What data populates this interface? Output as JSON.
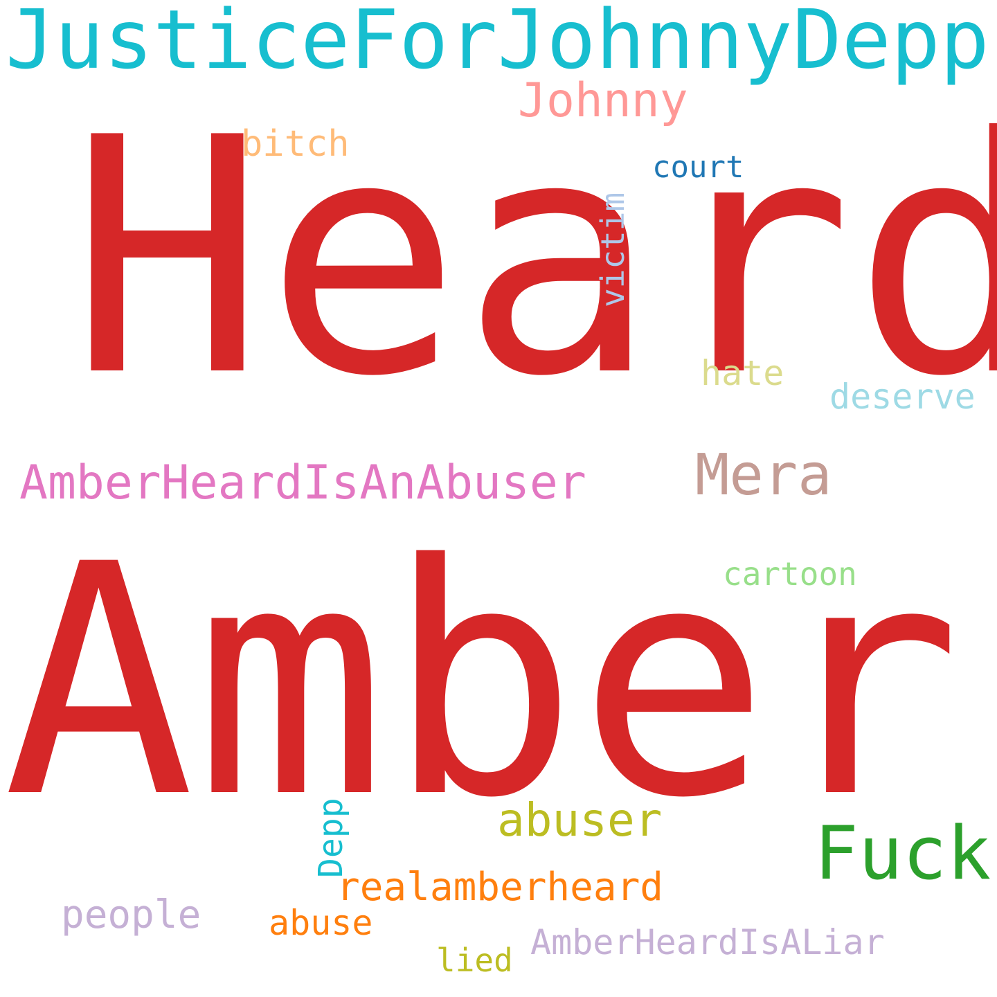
{
  "words": [
    {
      "id": "word-justice-for-johnny-depp",
      "text": "JusticeForJohnnyDepp",
      "color": "#17becf"
    },
    {
      "id": "word-johnny",
      "text": "Johnny",
      "color": "#ff9896"
    },
    {
      "id": "word-heard",
      "text": "Heard",
      "color": "#d62728"
    },
    {
      "id": "word-bitch",
      "text": "bitch",
      "color": "#ffbb78"
    },
    {
      "id": "word-court",
      "text": "court",
      "color": "#1f77b4"
    },
    {
      "id": "word-victim",
      "text": "victim",
      "color": "#aec7e8"
    },
    {
      "id": "word-hate",
      "text": "hate",
      "color": "#dbdb8d"
    },
    {
      "id": "word-deserve",
      "text": "deserve",
      "color": "#9edae5"
    },
    {
      "id": "word-amber-heard-is-an-abuser",
      "text": "AmberHeardIsAnAbuser",
      "color": "#e377c2"
    },
    {
      "id": "word-mera",
      "text": "Mera",
      "color": "#c49c94"
    },
    {
      "id": "word-cartoon",
      "text": "cartoon",
      "color": "#98df8a"
    },
    {
      "id": "word-amber",
      "text": "Amber",
      "color": "#d62728"
    },
    {
      "id": "word-depp",
      "text": "Depp",
      "color": "#17becf"
    },
    {
      "id": "word-abuser",
      "text": "abuser",
      "color": "#bcbd22"
    },
    {
      "id": "word-fuck",
      "text": "Fuck",
      "color": "#2ca02c"
    },
    {
      "id": "word-realamberheard",
      "text": "realamberheard",
      "color": "#ff7f0e"
    },
    {
      "id": "word-people",
      "text": "people",
      "color": "#c5b0d5"
    },
    {
      "id": "word-abuse",
      "text": "abuse",
      "color": "#ff7f0e"
    },
    {
      "id": "word-amber-heard-is-a-liar",
      "text": "AmberHeardIsALiar",
      "color": "#c5b0d5"
    },
    {
      "id": "word-lied",
      "text": "lied",
      "color": "#bcbd22"
    }
  ]
}
